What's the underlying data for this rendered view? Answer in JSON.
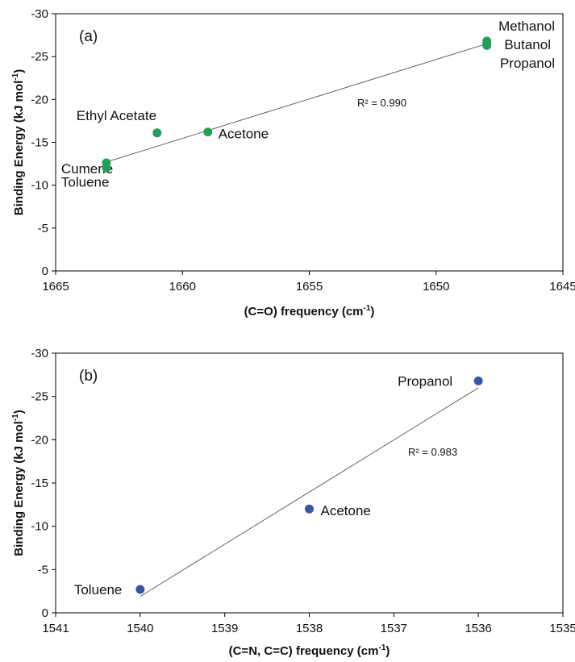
{
  "chart_data": [
    {
      "type": "scatter",
      "panel_label": "(a)",
      "xlabel_main": "(C=O) frequency (cm",
      "xlabel_sup": "-1",
      "xlabel_end": ")",
      "ylabel_main": "Binding Energy (kJ mol",
      "ylabel_sup": "-1",
      "ylabel_end": ")",
      "xlim": [
        1665,
        1645
      ],
      "ylim": [
        0,
        -30
      ],
      "x_ticks": [
        1665,
        1660,
        1655,
        1650,
        1645
      ],
      "y_ticks": [
        0,
        -5,
        -10,
        -15,
        -20,
        -25,
        -30
      ],
      "marker_color": "#22a05a",
      "points": [
        {
          "x": 1648,
          "y": -26.8,
          "label": ""
        },
        {
          "x": 1648,
          "y": -26.5,
          "label": ""
        },
        {
          "x": 1648,
          "y": -26.3,
          "label": ""
        },
        {
          "x": 1661,
          "y": -16.1,
          "label": "Ethyl Acetate"
        },
        {
          "x": 1659,
          "y": -16.2,
          "label": "Acetone"
        },
        {
          "x": 1663,
          "y": -12.6,
          "label": "Cumene"
        },
        {
          "x": 1663,
          "y": -12.0,
          "label": "Toluene"
        }
      ],
      "group_labels": [
        "Methanol",
        "Butanol",
        "Propanol"
      ],
      "trendline": {
        "x": [
          1663,
          1648
        ],
        "y": [
          -12.7,
          -26.5
        ]
      },
      "r2_text": "R² = 0.990"
    },
    {
      "type": "scatter",
      "panel_label": "(b)",
      "xlabel_main": "(C=N, C=C) frequency (cm",
      "xlabel_sup": "-1",
      "xlabel_end": ")",
      "ylabel_main": "Binding Energy (kJ mol",
      "ylabel_sup": "-1",
      "ylabel_end": ")",
      "xlim": [
        1541,
        1535
      ],
      "ylim": [
        0,
        -30
      ],
      "x_ticks": [
        1541,
        1540,
        1539,
        1538,
        1537,
        1536,
        1535
      ],
      "y_ticks": [
        0,
        -5,
        -10,
        -15,
        -20,
        -25,
        -30
      ],
      "marker_color": "#3a55a6",
      "points": [
        {
          "x": 1536,
          "y": -26.8,
          "label": "Propanol"
        },
        {
          "x": 1538,
          "y": -12.0,
          "label": "Acetone"
        },
        {
          "x": 1540,
          "y": -2.7,
          "label": "Toluene"
        }
      ],
      "group_labels": [],
      "trendline": {
        "x": [
          1540,
          1536
        ],
        "y": [
          -1.9,
          -26.0
        ]
      },
      "r2_text": "R² = 0.983"
    }
  ]
}
